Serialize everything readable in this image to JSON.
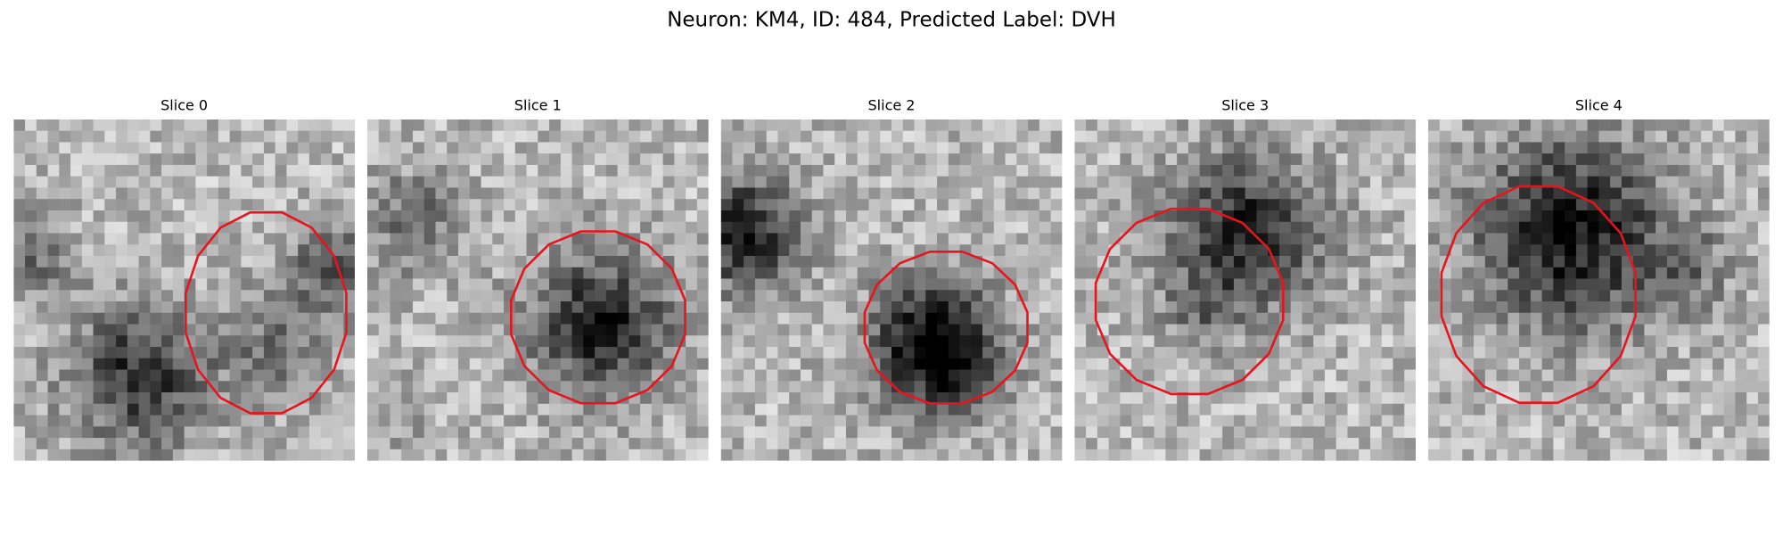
{
  "title": "Neuron: KM4, ID: 484, Predicted Label: DVH",
  "panels": [
    {
      "title": "Slice 0"
    },
    {
      "title": "Slice 1"
    },
    {
      "title": "Slice 2"
    },
    {
      "title": "Slice 3"
    },
    {
      "title": "Slice 4"
    }
  ]
}
